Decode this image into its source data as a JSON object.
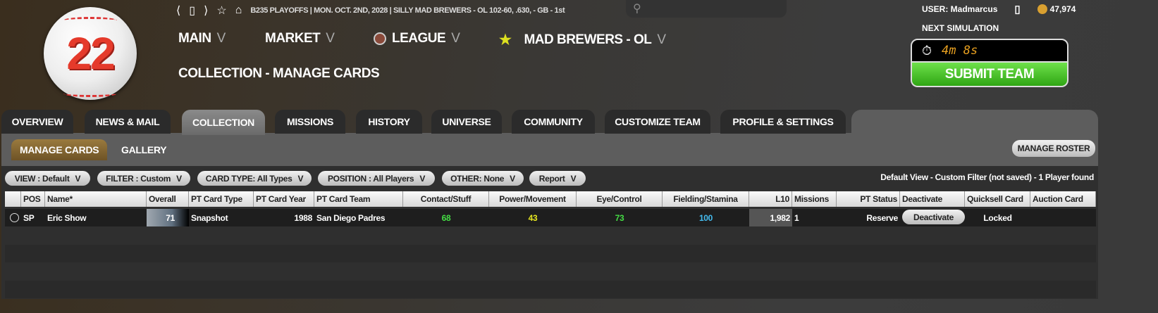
{
  "logo": {
    "number": "22"
  },
  "topbar": {
    "status": "B235 PLAYOFFS | MON. OCT. 2ND, 2028 | SILLY MAD BREWERS - OL  102-60, .630, - GB - 1st",
    "search_placeholder": ""
  },
  "user": {
    "label": "USER: Madmarcus",
    "coins": "47,974"
  },
  "sim": {
    "label": "NEXT SIMULATION",
    "timer": "4m 8s",
    "submit": "SUBMIT TEAM"
  },
  "nav": {
    "main": "MAIN",
    "market": "MARKET",
    "league": "LEAGUE",
    "team": "MAD BREWERS - OL",
    "chev": "V"
  },
  "page_title": "COLLECTION - MANAGE CARDS",
  "tabs": [
    "OVERVIEW",
    "NEWS & MAIL",
    "COLLECTION",
    "MISSIONS",
    "HISTORY",
    "UNIVERSE",
    "COMMUNITY",
    "CUSTOMIZE TEAM",
    "PROFILE & SETTINGS"
  ],
  "active_tab": "COLLECTION",
  "subtabs": [
    "MANAGE CARDS",
    "GALLERY"
  ],
  "manage_roster": "MANAGE ROSTER",
  "filters": [
    "VIEW : Default",
    "FILTER : Custom",
    "CARD TYPE: All Types",
    "POSITION : All Players",
    "OTHER: None",
    "Report"
  ],
  "filter_status": "Default View - Custom Filter (not saved) - 1 Player found",
  "columns": [
    "",
    "POS",
    "Name*",
    "Overall",
    "PT Card Type",
    "PT Card Year",
    "PT Card Team",
    "Contact/Stuff",
    "Power/Movement",
    "Eye/Control",
    "Fielding/Stamina",
    "L10",
    "Missions",
    "PT Status",
    "Deactivate",
    "Quicksell Card",
    "Auction Card"
  ],
  "rows": [
    {
      "pos": "SP",
      "name": "Eric Show",
      "overall": "71",
      "card_type": "Snapshot",
      "year": "1988",
      "team": "San Diego Padres",
      "contact": "68",
      "power": "43",
      "eye": "73",
      "fielding": "100",
      "l10": "1,982",
      "missions": "1",
      "status": "Reserve",
      "deactivate": "Deactivate",
      "quicksell": "Locked",
      "auction": ""
    }
  ],
  "colors": {
    "contact": "#44dd44",
    "power": "#e8e820",
    "eye": "#44dd44",
    "fielding": "#44bbee",
    "submit": "#3bbf1e",
    "timer": "#e8a020"
  }
}
